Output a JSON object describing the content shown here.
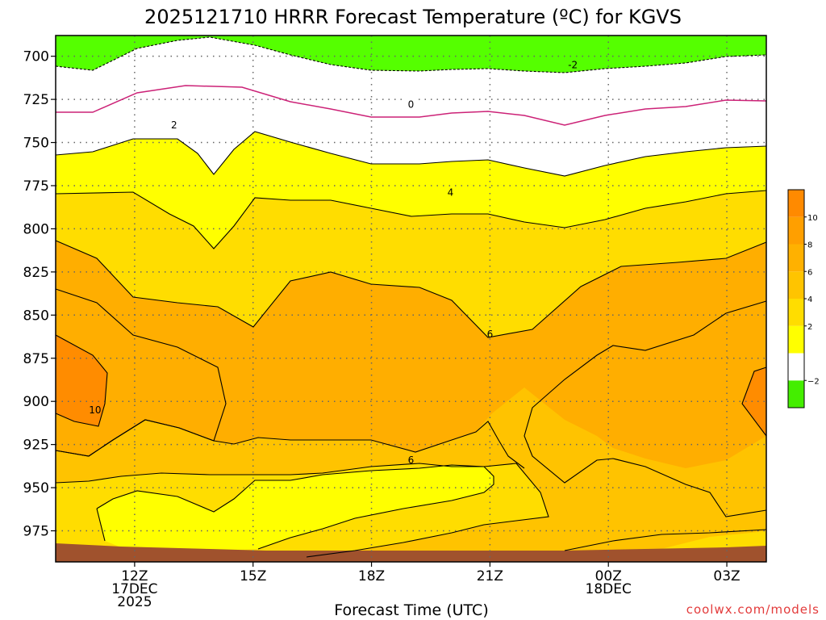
{
  "chart_data": {
    "type": "contour",
    "title": "2025121710 HRRR Forecast Temperature (ºC) for KGVS",
    "xlabel": "Forecast Time (UTC)",
    "watermark": "coolwx.com/models",
    "y_ticks": [
      "700",
      "725",
      "750",
      "775",
      "800",
      "825",
      "850",
      "875",
      "900",
      "925",
      "950",
      "975"
    ],
    "y_range_hPa": [
      688,
      993
    ],
    "x_range_hours": [
      10,
      28
    ],
    "x_ticks": [
      {
        "hour": 12,
        "lines": [
          "12Z",
          "17DEC",
          "2025"
        ]
      },
      {
        "hour": 15,
        "lines": [
          "15Z"
        ]
      },
      {
        "hour": 18,
        "lines": [
          "18Z"
        ]
      },
      {
        "hour": 21,
        "lines": [
          "21Z"
        ]
      },
      {
        "hour": 24,
        "lines": [
          "00Z",
          "18DEC"
        ]
      },
      {
        "hour": 27,
        "lines": [
          "03Z"
        ]
      }
    ],
    "contour_labels": [
      {
        "text": "-2",
        "hour": 23.1,
        "hPa": 705
      },
      {
        "text": "0",
        "hour": 19.0,
        "hPa": 728
      },
      {
        "text": "2",
        "hour": 13.0,
        "hPa": 740
      },
      {
        "text": "4",
        "hour": 20.0,
        "hPa": 779
      },
      {
        "text": "6",
        "hour": 21.0,
        "hPa": 861
      },
      {
        "text": "6",
        "hour": 19.0,
        "hPa": 934
      },
      {
        "text": "10",
        "hour": 11.0,
        "hPa": 905
      }
    ],
    "colorbar": {
      "levels": [
        -4,
        -2,
        0,
        2,
        4,
        6,
        8,
        10,
        12
      ],
      "tick_labels": [
        "−2",
        "2",
        "4",
        "6",
        "8",
        "10"
      ],
      "tick_values": [
        -2,
        2,
        4,
        6,
        8,
        10
      ],
      "colors": [
        "#44ee00",
        "#ffffff",
        "#ffff00",
        "#ffdd00",
        "#ffc400",
        "#ffb100",
        "#ff9f00",
        "#ff8a00"
      ]
    },
    "colors": {
      "below_minus2": "#55ff00",
      "between_minus2_0": "#ffffff",
      "between_0_2": "#ffffff",
      "between_2_4": "#ffff00",
      "between_4_6": "#ffdd00",
      "between_6_8": "#ffc300",
      "between_8_10": "#ffae00",
      "above_10": "#ff8c00",
      "ground": "#a0522d",
      "zero_line": "#cc2277"
    },
    "grid": true
  }
}
